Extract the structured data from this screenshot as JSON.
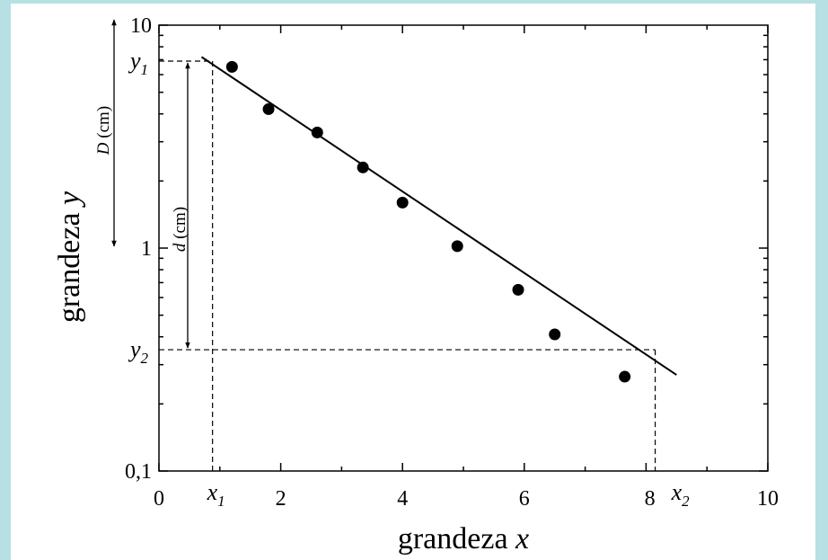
{
  "chart_data": {
    "type": "scatter",
    "xlabel_text": "grandeza",
    "xlabel_var": "x",
    "ylabel_text": "grandeza",
    "ylabel_var": "y",
    "xlim": [
      0,
      10
    ],
    "ylim": [
      0.1,
      10
    ],
    "yscale": "log",
    "grid": false,
    "x_ticks": [
      0,
      2,
      4,
      6,
      8,
      10
    ],
    "x_tick_labels": [
      "0",
      "2",
      "4",
      "6",
      "",
      "10"
    ],
    "y_ticks": [
      0.1,
      1,
      10
    ],
    "y_tick_labels": [
      "0,1",
      "1",
      "10"
    ],
    "points": [
      {
        "x": 1.2,
        "y": 6.5
      },
      {
        "x": 1.8,
        "y": 4.2
      },
      {
        "x": 2.6,
        "y": 3.3
      },
      {
        "x": 3.35,
        "y": 2.3
      },
      {
        "x": 4.0,
        "y": 1.6
      },
      {
        "x": 4.9,
        "y": 1.02
      },
      {
        "x": 5.9,
        "y": 0.65
      },
      {
        "x": 6.5,
        "y": 0.41
      },
      {
        "x": 7.65,
        "y": 0.265
      }
    ],
    "fit_line": {
      "x": [
        0.7,
        8.5
      ],
      "y": [
        7.2,
        0.27
      ]
    },
    "reference": {
      "x1": {
        "value": 0.88,
        "label_base": "x",
        "label_sub": "1"
      },
      "x2": {
        "value": 8.15,
        "label_base": "x",
        "label_sub": "2"
      },
      "y1": {
        "value": 6.9,
        "label_base": "y",
        "label_sub": "1"
      },
      "y2": {
        "value": 0.35,
        "label_base": "y",
        "label_sub": "2"
      },
      "x2_tick_label": "8"
    },
    "annotations": {
      "D": {
        "var": "D",
        "unit": " (cm)",
        "from": 10,
        "to": 1.0
      },
      "d": {
        "var": "d",
        "unit": " (cm)",
        "from": 6.9,
        "to": 0.35
      }
    }
  }
}
